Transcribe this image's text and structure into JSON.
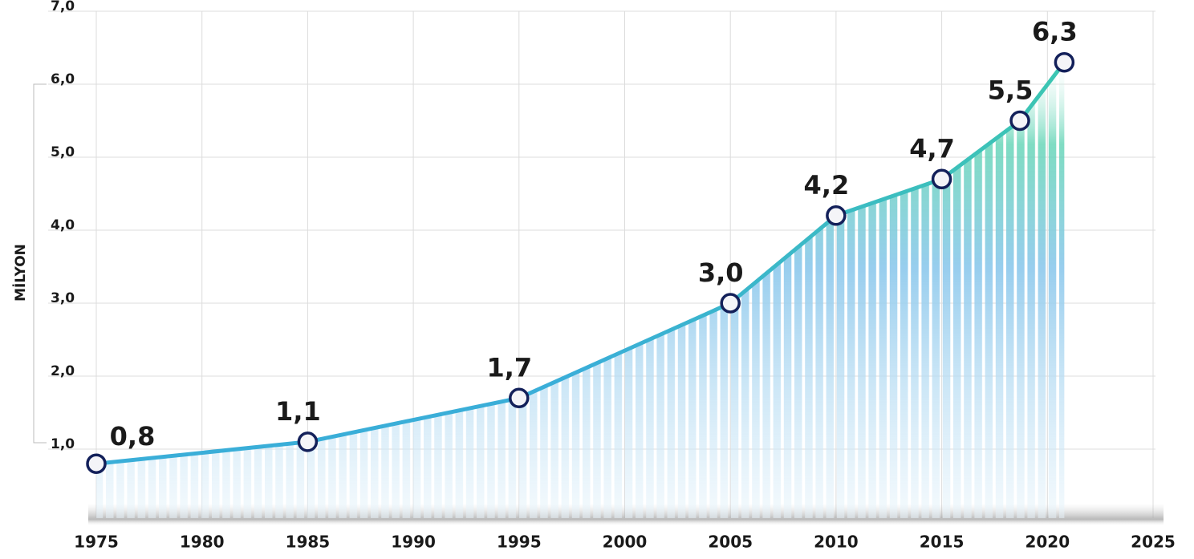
{
  "chart_data": {
    "type": "line",
    "ylabel": "MİLYON",
    "x": [
      1975,
      1985,
      1995,
      2005,
      2010,
      2015,
      2018.7,
      2020.8
    ],
    "series": [
      {
        "color": "#3aaed8",
        "end_color": "#3cc6b2",
        "values": [
          0.8,
          1.1,
          1.7,
          3.0,
          4.2,
          4.7,
          5.5,
          6.3
        ],
        "value_labels": [
          "0,8",
          "1,1",
          "1,7",
          "3,0",
          "4,2",
          "4,7",
          "5,5",
          "6,3"
        ]
      }
    ],
    "xlim": [
      1975,
      2025
    ],
    "xticks": [
      1975,
      1980,
      1985,
      1990,
      1995,
      2000,
      2005,
      2010,
      2015,
      2020,
      2025
    ],
    "ylim": [
      0,
      7
    ],
    "yticks": [
      {
        "value": 1,
        "label": "1,0"
      },
      {
        "value": 2,
        "label": "2,0"
      },
      {
        "value": 3,
        "label": "3,0"
      },
      {
        "value": 4,
        "label": "4,0"
      },
      {
        "value": 5,
        "label": "5,0"
      },
      {
        "value": 6,
        "label": "6,0"
      },
      {
        "value": 7,
        "label": "7,0"
      }
    ],
    "grid": true
  }
}
